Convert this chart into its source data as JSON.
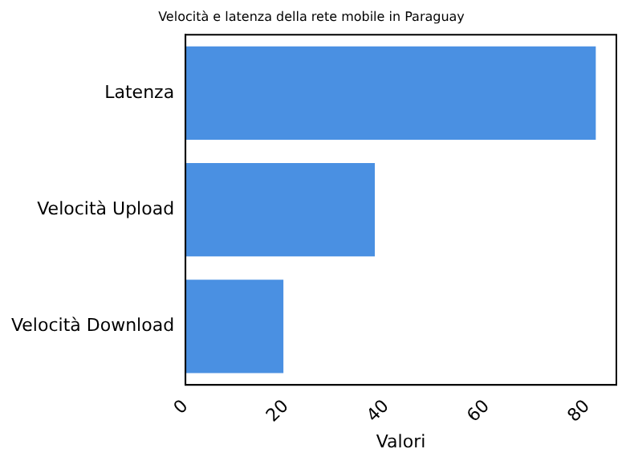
{
  "chart_data": {
    "type": "bar",
    "orientation": "horizontal",
    "title": "Velocità e latenza della rete mobile in Paraguay",
    "xlabel": "Valori",
    "categories": [
      "Latenza",
      "Velocità Upload",
      "Velocità Download"
    ],
    "values": [
      81.7,
      37.7,
      19.5
    ],
    "color": "#4a90e2",
    "xlim": [
      0,
      85.8
    ],
    "xticks": [
      0,
      20,
      40,
      60,
      80
    ],
    "grid": false,
    "legend": false
  }
}
